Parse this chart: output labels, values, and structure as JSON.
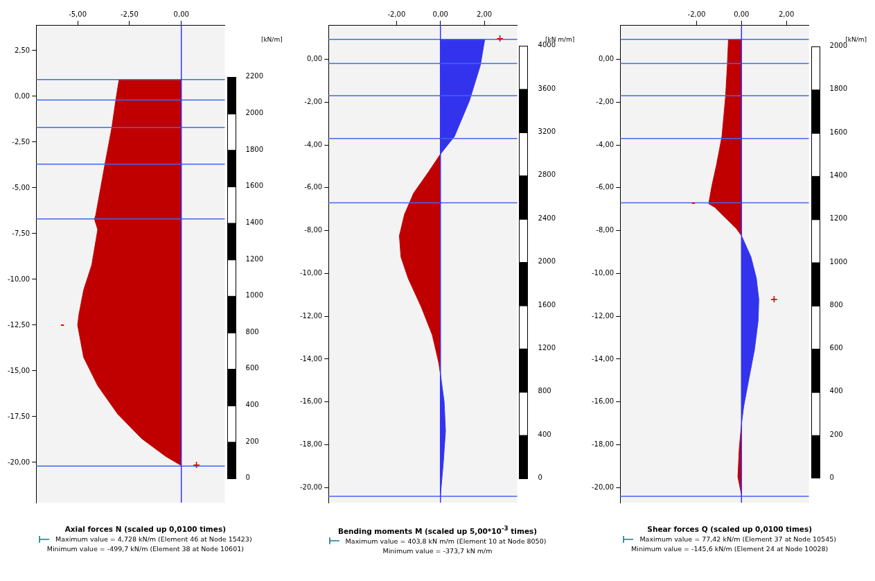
{
  "chart_data": [
    {
      "type": "area",
      "title": "Axial forces N (scaled up 0,0100 times)",
      "annotations": [
        "Maximum value = 4,728 kN/m (Element 46 at Node 15423)",
        "Minimum value = -499,7 kN/m (Element 38 at Node 10601)",
        {
          "text": "-",
          "x": -5.0,
          "y": -12.5
        },
        {
          "text": "+",
          "x": 0,
          "y": -20.17
        }
      ],
      "xlim": [
        -7,
        2.1
      ],
      "xticks": [
        {
          "value": -5,
          "label": "-5,00"
        },
        {
          "value": -2.5,
          "label": "-2,50"
        },
        {
          "value": 0,
          "label": "0,00"
        }
      ],
      "ylim": [
        -22.2,
        3.9
      ],
      "yticks": [
        {
          "value": 2.5,
          "label": "2,50"
        },
        {
          "value": 0,
          "label": "0,00"
        },
        {
          "value": -2.5,
          "label": "-2,50"
        },
        {
          "value": -5,
          "label": "-5,00"
        },
        {
          "value": -7.5,
          "label": "-7,50"
        },
        {
          "value": -10,
          "label": "-10,00"
        },
        {
          "value": -12.5,
          "label": "-12,50"
        },
        {
          "value": -15,
          "label": "-15,00"
        },
        {
          "value": -17.5,
          "label": "-17,50"
        },
        {
          "value": -20,
          "label": "-20,00"
        }
      ],
      "y2label": "[kN/m]",
      "y2lim": [
        -134,
        2484
      ],
      "y2ticks": [
        0,
        200,
        400,
        600,
        800,
        1000,
        1200,
        1400,
        1600,
        1800,
        2000,
        2200
      ],
      "ref_lines": [
        {
          "axis": "y",
          "value": 0.92,
          "color": "#4466ee"
        },
        {
          "axis": "y",
          "value": -0.2,
          "color": "#4466ee"
        },
        {
          "axis": "y",
          "value": -1.7,
          "color": "#4466ee"
        },
        {
          "axis": "y",
          "value": -3.7,
          "color": "#4466ee"
        },
        {
          "axis": "y",
          "value": -6.7,
          "color": "#4466ee"
        },
        {
          "axis": "y",
          "value": -20.2,
          "color": "#4466ee"
        },
        {
          "axis": "x",
          "value": 0,
          "color": "#3333ff"
        }
      ],
      "series": [
        {
          "color": "#c00000",
          "x": [
            0,
            -3.0,
            -3.16,
            -3.35,
            -3.68,
            -4.13,
            -4.19,
            -4.03,
            -4.32,
            -4.71,
            -4.94,
            -5.0,
            -4.71,
            -4.03,
            -3.06,
            -1.9,
            -0.74,
            0
          ],
          "values": [
            0.92,
            0.92,
            -0.21,
            -1.7,
            -3.69,
            -6.51,
            -6.7,
            -7.28,
            -9.22,
            -10.58,
            -11.93,
            -12.5,
            -14.26,
            -15.81,
            -17.37,
            -18.71,
            -19.68,
            -20.17
          ]
        }
      ]
    },
    {
      "type": "area",
      "title": "Bending moments M (scaled up 5,00*10$^{-3}$ times)",
      "annotations": [
        "Maximum value = 403,8 kN m/m (Element 10 at Node 8050)",
        "Minimum value = -373,7 kN m/m",
        {
          "text": "+",
          "x": 2.02,
          "y": 0.93
        }
      ],
      "xlim": [
        -5.1,
        3.5
      ],
      "xticks": [
        {
          "value": -2,
          "label": "-2,00"
        },
        {
          "value": 0,
          "label": "0,00"
        },
        {
          "value": 2,
          "label": "2,00"
        }
      ],
      "ylim": [
        -20.7,
        1.6
      ],
      "yticks": [
        {
          "value": 0,
          "label": "0,00"
        },
        {
          "value": -2,
          "label": "-2,00"
        },
        {
          "value": -4,
          "label": "-4,00"
        },
        {
          "value": -6,
          "label": "-6,00"
        },
        {
          "value": -8,
          "label": "-8,00"
        },
        {
          "value": -10,
          "label": "-10,00"
        },
        {
          "value": -12,
          "label": "-12,00"
        },
        {
          "value": -14,
          "label": "-14,00"
        },
        {
          "value": -16,
          "label": "-16,00"
        },
        {
          "value": -18,
          "label": "-18,00"
        },
        {
          "value": -20,
          "label": "-20,00"
        }
      ],
      "y2label": "[kN m/m]",
      "y2lim": [
        -227,
        4190
      ],
      "y2ticks": [
        0,
        400,
        800,
        1200,
        1600,
        2000,
        2400,
        2800,
        3200,
        3600,
        4000
      ],
      "ref_lines": [
        {
          "axis": "y",
          "value": 0.93,
          "color": "#4466ee"
        },
        {
          "axis": "y",
          "value": -0.2,
          "color": "#4466ee"
        },
        {
          "axis": "y",
          "value": -1.7,
          "color": "#4466ee"
        },
        {
          "axis": "y",
          "value": -3.7,
          "color": "#4466ee"
        },
        {
          "axis": "y",
          "value": -6.7,
          "color": "#4466ee"
        },
        {
          "axis": "y",
          "value": -20.4,
          "color": "#4466ee"
        },
        {
          "axis": "x",
          "value": 0,
          "color": "#3333ff"
        }
      ],
      "series": [
        {
          "color": "#3333ee",
          "x": [
            0,
            2.02,
            1.82,
            1.32,
            0.64,
            0
          ],
          "values": [
            0.93,
            0.93,
            -0.28,
            -1.94,
            -3.6,
            -4.43
          ]
        },
        {
          "color": "#c00000",
          "x": [
            0,
            -0.54,
            -1.22,
            -1.64,
            -1.87,
            -1.8,
            -1.47,
            -0.88,
            -0.37,
            -0.07,
            0
          ],
          "values": [
            -4.43,
            -5.26,
            -6.25,
            -7.25,
            -8.24,
            -9.23,
            -10.23,
            -11.55,
            -12.87,
            -14.2,
            -14.7
          ]
        },
        {
          "color": "#3333ee",
          "x": [
            0,
            0.17,
            0.23,
            0.13,
            0
          ],
          "values": [
            -14.7,
            -16.0,
            -17.35,
            -18.85,
            -20.33
          ]
        }
      ]
    },
    {
      "type": "area",
      "title": "Shear forces Q (scaled up 0,0100 times)",
      "annotations": [
        "Maximum value = 77,42 kN/m (Element 37 at Node 10545)",
        "Minimum value = -145,6 kN/m (Element 24 at Node 10028)",
        {
          "text": "-",
          "x": -1.46,
          "y": -6.74
        },
        {
          "text": "+",
          "x": 0.77,
          "y": -11.22
        }
      ],
      "xlim": [
        -5.4,
        3.0
      ],
      "xticks": [
        {
          "value": -2,
          "label": "-2,00"
        },
        {
          "value": 0,
          "label": "0,00"
        },
        {
          "value": 2,
          "label": "2,00"
        }
      ],
      "ylim": [
        -20.7,
        1.6
      ],
      "yticks": [
        {
          "value": 0,
          "label": "0,00"
        },
        {
          "value": -2,
          "label": "-2,00"
        },
        {
          "value": -4,
          "label": "-4,00"
        },
        {
          "value": -6,
          "label": "-6,00"
        },
        {
          "value": -8,
          "label": "-8,00"
        },
        {
          "value": -10,
          "label": "-10,00"
        },
        {
          "value": -12,
          "label": "-12,00"
        },
        {
          "value": -14,
          "label": "-14,00"
        },
        {
          "value": -16,
          "label": "-16,00"
        },
        {
          "value": -18,
          "label": "-18,00"
        },
        {
          "value": -20,
          "label": "-20,00"
        }
      ],
      "y2label": "[kN/m]",
      "y2lim": [
        -114,
        2098
      ],
      "y2ticks": [
        0,
        200,
        400,
        600,
        800,
        1000,
        1200,
        1400,
        1600,
        1800,
        2000
      ],
      "ref_lines": [
        {
          "axis": "y",
          "value": 0.93,
          "color": "#4466ee"
        },
        {
          "axis": "y",
          "value": -0.2,
          "color": "#4466ee"
        },
        {
          "axis": "y",
          "value": -1.7,
          "color": "#4466ee"
        },
        {
          "axis": "y",
          "value": -3.7,
          "color": "#4466ee"
        },
        {
          "axis": "y",
          "value": -6.7,
          "color": "#4466ee"
        },
        {
          "axis": "y",
          "value": -20.4,
          "color": "#4466ee"
        },
        {
          "axis": "x",
          "value": 0,
          "color": "#3333ff"
        }
      ],
      "series": [
        {
          "color": "#c00000",
          "x": [
            0,
            -0.58,
            -0.63,
            -0.71,
            -0.87,
            -1.11,
            -1.32,
            -1.46,
            -1.19,
            -0.71,
            -0.23,
            0
          ],
          "values": [
            0.93,
            0.93,
            -0.28,
            -1.77,
            -3.6,
            -4.92,
            -5.92,
            -6.74,
            -6.91,
            -7.41,
            -7.9,
            -8.24
          ]
        },
        {
          "color": "#3333ee",
          "x": [
            0,
            0.42,
            0.66,
            0.77,
            0.74,
            0.58,
            0.34,
            0.1,
            0
          ],
          "values": [
            -8.24,
            -9.23,
            -10.22,
            -11.22,
            -12.21,
            -13.54,
            -14.86,
            -16.19,
            -17.02
          ]
        },
        {
          "color": "#c00000",
          "x": [
            0,
            -0.1,
            -0.16,
            0
          ],
          "values": [
            -17.02,
            -18.18,
            -19.5,
            -20.33
          ]
        }
      ]
    }
  ]
}
